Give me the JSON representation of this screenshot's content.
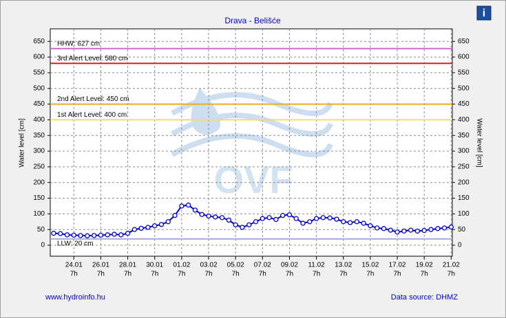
{
  "chart_data": {
    "type": "line",
    "title": "Drava - Belišće",
    "y_label": "Water level [cm]",
    "y2_label": "Water level [cm]",
    "watermark": "OVF",
    "website": "www.hydroinfo.hu",
    "source": "Data source: DHMZ",
    "info": "i",
    "ylim": [
      -35,
      690
    ],
    "yticks": [
      0,
      50,
      100,
      150,
      200,
      250,
      300,
      350,
      400,
      450,
      500,
      550,
      600,
      650
    ],
    "y2lim": [
      -35,
      690
    ],
    "y2ticks": [
      0,
      50,
      100,
      150,
      200,
      250,
      300,
      350,
      400,
      450,
      500,
      550,
      600,
      650
    ],
    "xlim": [
      "22.01 13h",
      "21.02 9h"
    ],
    "xticks": [
      {
        "date": "24.01",
        "hour": "7h"
      },
      {
        "date": "26.01",
        "hour": "7h"
      },
      {
        "date": "28.01",
        "hour": "7h"
      },
      {
        "date": "30.01",
        "hour": "7h"
      },
      {
        "date": "01.02",
        "hour": "7h"
      },
      {
        "date": "03.02",
        "hour": "7h"
      },
      {
        "date": "05.02",
        "hour": "7h"
      },
      {
        "date": "07.02",
        "hour": "7h"
      },
      {
        "date": "09.02",
        "hour": "7h"
      },
      {
        "date": "11.02",
        "hour": "7h"
      },
      {
        "date": "13.02",
        "hour": "7h"
      },
      {
        "date": "15.02",
        "hour": "7h"
      },
      {
        "date": "17.02",
        "hour": "7h"
      },
      {
        "date": "19.02",
        "hour": "7h"
      },
      {
        "date": "21.02",
        "hour": "7h"
      }
    ],
    "grid": true,
    "reference_lines": [
      {
        "label": "HHW: 627 cm",
        "value": 627,
        "color": "#cc66cc"
      },
      {
        "label": "3rd Alert Level: 580 cm",
        "value": 580,
        "color": "#cc2222"
      },
      {
        "label": "2nd Alert Level: 450 cm",
        "value": 450,
        "color": "#f5a623"
      },
      {
        "label": "1st Alert Level: 400 cm",
        "value": 400,
        "color": "#f0e060"
      },
      {
        "label": "LLW: 20 cm",
        "value": 20,
        "color": "#aaaadd"
      }
    ],
    "x": [
      "22.01 19h",
      "23.01 7h",
      "23.01 19h",
      "24.01 7h",
      "24.01 19h",
      "25.01 7h",
      "25.01 19h",
      "26.01 7h",
      "26.01 19h",
      "27.01 7h",
      "27.01 19h",
      "28.01 7h",
      "28.01 19h",
      "29.01 7h",
      "29.01 19h",
      "30.01 7h",
      "30.01 19h",
      "31.01 7h",
      "31.01 19h",
      "01.02 7h",
      "01.02 19h",
      "02.02 7h",
      "02.02 19h",
      "03.02 7h",
      "03.02 19h",
      "04.02 7h",
      "04.02 19h",
      "05.02 7h",
      "05.02 19h",
      "06.02 7h",
      "06.02 19h",
      "07.02 7h",
      "07.02 19h",
      "08.02 7h",
      "08.02 19h",
      "09.02 7h",
      "09.02 19h",
      "10.02 7h",
      "10.02 19h",
      "11.02 7h",
      "11.02 19h",
      "12.02 7h",
      "12.02 19h",
      "13.02 7h",
      "13.02 19h",
      "14.02 7h",
      "14.02 19h",
      "15.02 7h",
      "15.02 19h",
      "16.02 7h",
      "16.02 19h",
      "17.02 7h",
      "17.02 19h",
      "18.02 7h",
      "18.02 19h",
      "19.02 7h",
      "19.02 19h",
      "20.02 7h",
      "20.02 19h",
      "21.02 7h"
    ],
    "series": [
      {
        "color": "#0000cc",
        "values": [
          38,
          37,
          33,
          32,
          31,
          30,
          31,
          32,
          33,
          35,
          33,
          38,
          50,
          54,
          57,
          62,
          66,
          75,
          95,
          125,
          128,
          112,
          98,
          93,
          90,
          88,
          80,
          65,
          57,
          65,
          75,
          85,
          88,
          82,
          95,
          97,
          85,
          70,
          75,
          85,
          88,
          87,
          83,
          75,
          72,
          75,
          70,
          62,
          55,
          53,
          48,
          42,
          45,
          48,
          45,
          47,
          50,
          53,
          55,
          58
        ]
      }
    ]
  }
}
